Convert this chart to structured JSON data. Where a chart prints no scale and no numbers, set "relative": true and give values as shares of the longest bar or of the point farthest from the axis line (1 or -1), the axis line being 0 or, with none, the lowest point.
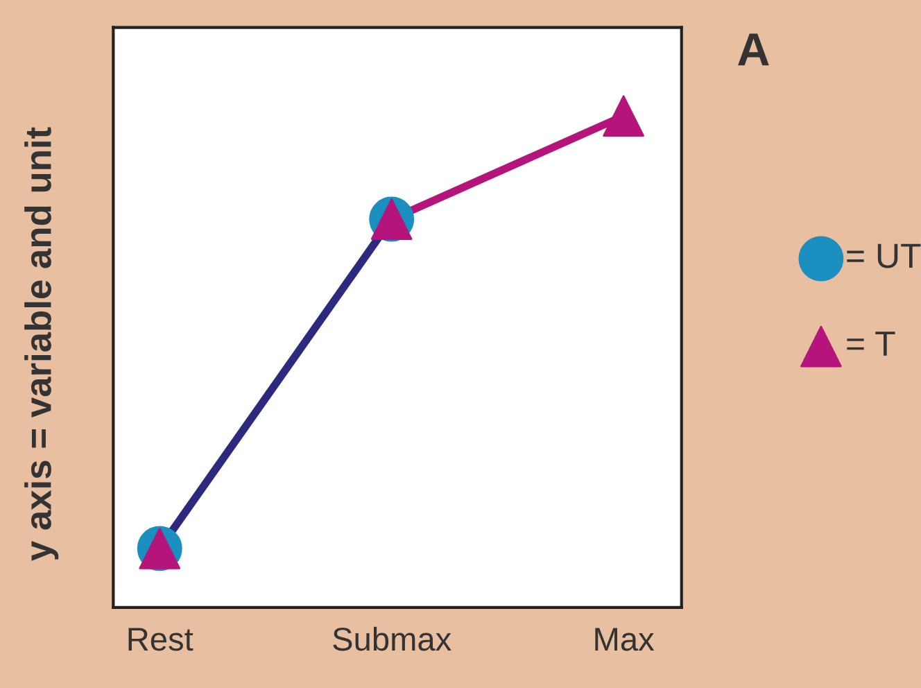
{
  "chart_data": {
    "type": "line",
    "title": "A",
    "ylabel": "y axis = variable and unit",
    "categories": [
      "Rest",
      "Submax",
      "Max"
    ],
    "relative": true,
    "legend": "right",
    "series": [
      {
        "color": "#2b2a7e",
        "values": [
          0.12,
          0.79,
          null
        ],
        "marker": "none"
      },
      {
        "color": "#b5157a",
        "values": [
          null,
          0.79,
          1
        ],
        "marker": "none"
      },
      {
        "type": "scatter",
        "name": "= UT",
        "color": "#1a8fc0",
        "values": [
          0.12,
          0.79,
          null
        ],
        "marker": "circle"
      },
      {
        "type": "scatter",
        "name": "= T",
        "color": "#b5157a",
        "values": [
          0.12,
          0.79,
          1
        ],
        "marker": "triangle"
      }
    ]
  }
}
